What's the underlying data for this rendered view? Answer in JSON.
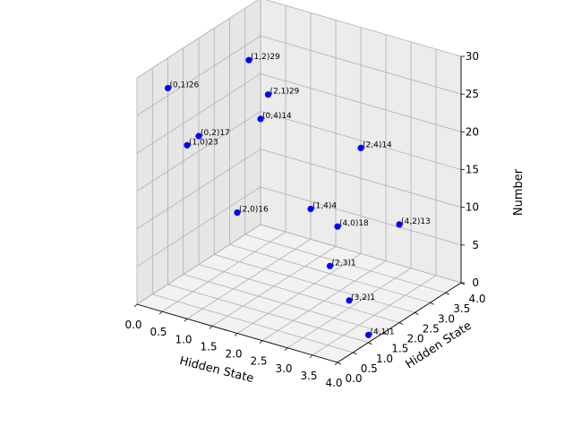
{
  "chart_data": {
    "type": "scatter",
    "projection": "3d",
    "title": "",
    "xlabel": "Hidden State",
    "ylabel": "Hidden State",
    "zlabel": "Number",
    "xlim": [
      0,
      4
    ],
    "ylim": [
      0,
      4
    ],
    "zlim": [
      0,
      30
    ],
    "x_ticks": [
      "0.0",
      "0.5",
      "1.0",
      "1.5",
      "2.0",
      "2.5",
      "3.0",
      "3.5",
      "4.0"
    ],
    "y_ticks": [
      "0.0",
      "0.5",
      "1.0",
      "1.5",
      "2.0",
      "2.5",
      "3.0",
      "3.5",
      "4.0"
    ],
    "z_ticks": [
      "0",
      "5",
      "10",
      "15",
      "20",
      "25",
      "30"
    ],
    "grid": true,
    "marker_color": "#0000ff",
    "points": [
      {
        "x": 0,
        "y": 1,
        "z": 26,
        "label": "(0,1)26"
      },
      {
        "x": 0,
        "y": 2,
        "z": 17,
        "label": "(0,2)17"
      },
      {
        "x": 0,
        "y": 4,
        "z": 14,
        "label": "(0,4)14"
      },
      {
        "x": 1,
        "y": 0,
        "z": 23,
        "label": "(1,0)23"
      },
      {
        "x": 1,
        "y": 2,
        "z": 29,
        "label": "(1,2)29"
      },
      {
        "x": 1,
        "y": 4,
        "z": 4,
        "label": "(1,4)4"
      },
      {
        "x": 2,
        "y": 0,
        "z": 16,
        "label": "(2,0)16"
      },
      {
        "x": 2,
        "y": 1,
        "z": 29,
        "label": "(2,1)29"
      },
      {
        "x": 2,
        "y": 3,
        "z": 1,
        "label": "(2,3)1"
      },
      {
        "x": 2,
        "y": 4,
        "z": 14,
        "label": "(2,4)14"
      },
      {
        "x": 3,
        "y": 2,
        "z": 1,
        "label": "(3,2)1"
      },
      {
        "x": 4,
        "y": 0,
        "z": 18,
        "label": "(4,0)18"
      },
      {
        "x": 4,
        "y": 1,
        "z": 1,
        "label": "(4,1)1"
      },
      {
        "x": 4,
        "y": 2,
        "z": 13,
        "label": "(4,2)13"
      }
    ]
  }
}
